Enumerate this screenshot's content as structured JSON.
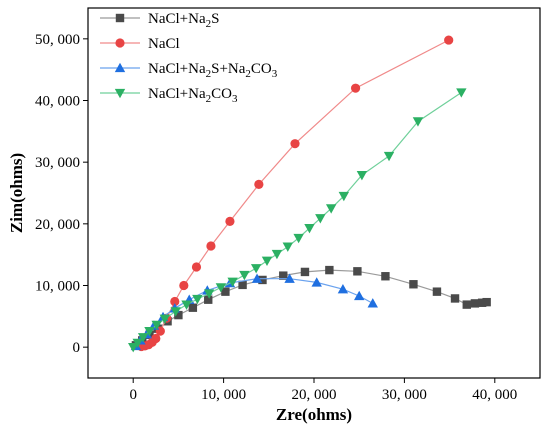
{
  "chart_data": {
    "type": "scatter",
    "xlabel": "Zre(ohms)",
    "ylabel": "Zim(ohms)",
    "xlim": [
      -5000,
      45000
    ],
    "ylim": [
      -5000,
      55000
    ],
    "x_ticks": [
      0,
      10000,
      20000,
      30000,
      40000
    ],
    "y_ticks": [
      0,
      10000,
      20000,
      30000,
      40000,
      50000
    ],
    "x_tick_labels": [
      "0",
      "10, 000",
      "20, 000",
      "30, 000",
      "40, 000"
    ],
    "y_tick_labels": [
      "0",
      "10, 000",
      "20, 000",
      "30, 000",
      "40, 000",
      "50, 000"
    ],
    "grid": false,
    "legend_position": "top-left",
    "series": [
      {
        "name": "NaCl+Na2S",
        "legend_parts": [
          [
            "NaCl+Na",
            ""
          ],
          [
            "2",
            "sub"
          ],
          [
            "S",
            ""
          ]
        ],
        "color": "#4a4a4a",
        "line_color": "#9a9a9a",
        "marker": "square",
        "points": [
          [
            300,
            300
          ],
          [
            1000,
            1100
          ],
          [
            1800,
            2000
          ],
          [
            2700,
            3000
          ],
          [
            3800,
            4200
          ],
          [
            5000,
            5200
          ],
          [
            6600,
            6400
          ],
          [
            8300,
            7700
          ],
          [
            10200,
            9000
          ],
          [
            12100,
            10100
          ],
          [
            14300,
            10900
          ],
          [
            16600,
            11600
          ],
          [
            19000,
            12200
          ],
          [
            21700,
            12500
          ],
          [
            24800,
            12300
          ],
          [
            27900,
            11500
          ],
          [
            31000,
            10200
          ],
          [
            33600,
            9000
          ],
          [
            35600,
            7900
          ],
          [
            36900,
            6900
          ],
          [
            37800,
            7100
          ],
          [
            38600,
            7200
          ],
          [
            39100,
            7300
          ]
        ]
      },
      {
        "name": "NaCl",
        "legend_parts": [
          [
            "NaCl",
            ""
          ]
        ],
        "color": "#e84444",
        "line_color": "#f08a8a",
        "marker": "circle",
        "points": [
          [
            900,
            100
          ],
          [
            1300,
            200
          ],
          [
            1700,
            400
          ],
          [
            2100,
            800
          ],
          [
            2500,
            1400
          ],
          [
            3000,
            2600
          ],
          [
            3700,
            4700
          ],
          [
            4600,
            7400
          ],
          [
            5600,
            10000
          ],
          [
            7000,
            13000
          ],
          [
            8600,
            16400
          ],
          [
            10700,
            20400
          ],
          [
            13900,
            26400
          ],
          [
            17900,
            33000
          ],
          [
            24600,
            42000
          ],
          [
            34900,
            49800
          ]
        ]
      },
      {
        "name": "NaCl+Na2S+Na2CO3",
        "legend_parts": [
          [
            "NaCl+Na",
            ""
          ],
          [
            "2",
            "sub"
          ],
          [
            "S+Na",
            ""
          ],
          [
            "2",
            "sub"
          ],
          [
            "CO",
            ""
          ],
          [
            "3",
            "sub"
          ]
        ],
        "color": "#1f6fe0",
        "line_color": "#6aa2ee",
        "marker": "triangle-up",
        "points": [
          [
            300,
            200
          ],
          [
            800,
            1100
          ],
          [
            1500,
            2100
          ],
          [
            2300,
            3500
          ],
          [
            3300,
            4900
          ],
          [
            4600,
            6300
          ],
          [
            6200,
            7700
          ],
          [
            8200,
            9200
          ],
          [
            10700,
            10400
          ],
          [
            13700,
            11100
          ],
          [
            17300,
            11100
          ],
          [
            20300,
            10500
          ],
          [
            23200,
            9400
          ],
          [
            25000,
            8300
          ],
          [
            26500,
            7100
          ]
        ]
      },
      {
        "name": "NaCl+Na2CO3",
        "legend_parts": [
          [
            "NaCl+Na",
            ""
          ],
          [
            "2",
            "sub"
          ],
          [
            "CO",
            ""
          ],
          [
            "3",
            "sub"
          ]
        ],
        "color": "#2bb063",
        "line_color": "#6fd09a",
        "marker": "triangle-down",
        "points": [
          [
            0,
            0
          ],
          [
            500,
            700
          ],
          [
            1100,
            1600
          ],
          [
            1800,
            2600
          ],
          [
            2600,
            3600
          ],
          [
            3500,
            4600
          ],
          [
            4700,
            5800
          ],
          [
            5900,
            6900
          ],
          [
            7100,
            7800
          ],
          [
            8400,
            8700
          ],
          [
            9700,
            9700
          ],
          [
            11000,
            10600
          ],
          [
            12300,
            11700
          ],
          [
            13600,
            12800
          ],
          [
            14800,
            14000
          ],
          [
            15900,
            15100
          ],
          [
            17100,
            16300
          ],
          [
            18300,
            17700
          ],
          [
            19500,
            19300
          ],
          [
            20700,
            20900
          ],
          [
            21900,
            22500
          ],
          [
            23300,
            24500
          ],
          [
            25300,
            27900
          ],
          [
            28300,
            31000
          ],
          [
            31500,
            36600
          ],
          [
            36300,
            41300
          ]
        ]
      }
    ]
  }
}
